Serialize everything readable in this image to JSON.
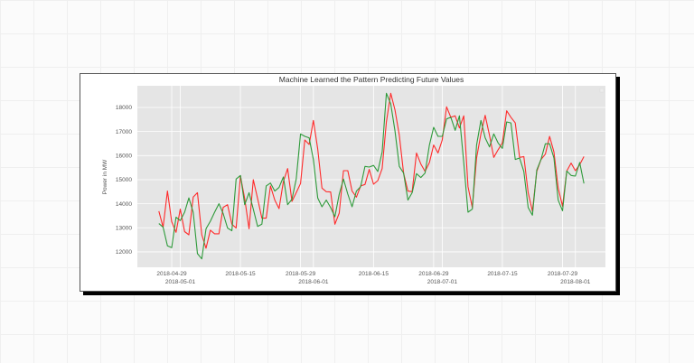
{
  "chart_data": {
    "type": "line",
    "title": "Machine Learned the Pattern Predicting Future Values",
    "xlabel": "",
    "ylabel": "Power in MW",
    "xlim": [
      "2018-04-21",
      "2018-08-08"
    ],
    "ylim": [
      11360,
      18900
    ],
    "grid": true,
    "legend": "top-right (empty box)",
    "y_ticks": [
      12000,
      13000,
      14000,
      15000,
      16000,
      17000,
      18000
    ],
    "x_ticks": [
      "2018-04-29",
      "2018-05-01",
      "2018-05-15",
      "2018-05-29",
      "2018-06-01",
      "2018-06-15",
      "2018-06-29",
      "2018-07-01",
      "2018-07-15",
      "2018-07-29",
      "2018-08-01"
    ],
    "x": [
      "2018-04-26",
      "2018-04-27",
      "2018-04-28",
      "2018-04-29",
      "2018-04-30",
      "2018-05-01",
      "2018-05-02",
      "2018-05-03",
      "2018-05-04",
      "2018-05-05",
      "2018-05-06",
      "2018-05-07",
      "2018-05-08",
      "2018-05-09",
      "2018-05-10",
      "2018-05-11",
      "2018-05-12",
      "2018-05-13",
      "2018-05-14",
      "2018-05-15",
      "2018-05-16",
      "2018-05-17",
      "2018-05-18",
      "2018-05-19",
      "2018-05-20",
      "2018-05-21",
      "2018-05-22",
      "2018-05-23",
      "2018-05-24",
      "2018-05-25",
      "2018-05-26",
      "2018-05-27",
      "2018-05-28",
      "2018-05-29",
      "2018-05-30",
      "2018-05-31",
      "2018-06-01",
      "2018-06-02",
      "2018-06-03",
      "2018-06-04",
      "2018-06-05",
      "2018-06-06",
      "2018-06-07",
      "2018-06-08",
      "2018-06-09",
      "2018-06-10",
      "2018-06-11",
      "2018-06-12",
      "2018-06-13",
      "2018-06-14",
      "2018-06-15",
      "2018-06-16",
      "2018-06-17",
      "2018-06-18",
      "2018-06-19",
      "2018-06-20",
      "2018-06-21",
      "2018-06-22",
      "2018-06-23",
      "2018-06-24",
      "2018-06-25",
      "2018-06-26",
      "2018-06-27",
      "2018-06-28",
      "2018-06-29",
      "2018-06-30",
      "2018-07-01",
      "2018-07-02",
      "2018-07-03",
      "2018-07-04",
      "2018-07-05",
      "2018-07-06",
      "2018-07-07",
      "2018-07-08",
      "2018-07-09",
      "2018-07-10",
      "2018-07-11",
      "2018-07-12",
      "2018-07-13",
      "2018-07-14",
      "2018-07-15",
      "2018-07-16",
      "2018-07-17",
      "2018-07-18",
      "2018-07-19",
      "2018-07-20",
      "2018-07-21",
      "2018-07-22",
      "2018-07-23",
      "2018-07-24",
      "2018-07-25",
      "2018-07-26",
      "2018-07-27",
      "2018-07-28",
      "2018-07-29",
      "2018-07-30",
      "2018-07-31",
      "2018-08-01",
      "2018-08-02",
      "2018-08-03"
    ],
    "series": [
      {
        "color": "#ff2a2a",
        "values": [
          13690,
          13025,
          14525,
          13250,
          12810,
          13775,
          12840,
          12710,
          14275,
          14460,
          12710,
          12150,
          12900,
          12750,
          12750,
          13850,
          13960,
          13150,
          12990,
          15150,
          14210,
          12960,
          15000,
          14210,
          13400,
          13400,
          14740,
          14150,
          13800,
          14925,
          15460,
          14100,
          14460,
          14840,
          16650,
          16460,
          17460,
          16275,
          14650,
          14500,
          14490,
          13150,
          13610,
          15375,
          15375,
          14525,
          14275,
          14740,
          14800,
          15425,
          14810,
          14960,
          15460,
          17400,
          18590,
          17900,
          16840,
          15275,
          14525,
          14500,
          16110,
          15650,
          15340,
          15710,
          16440,
          16110,
          16650,
          18025,
          17590,
          17650,
          17150,
          17650,
          14710,
          13840,
          15900,
          16900,
          17675,
          16840,
          15925,
          16240,
          16525,
          17860,
          17590,
          17360,
          15925,
          15960,
          14460,
          13690,
          15340,
          15840,
          16060,
          16800,
          16150,
          14650,
          13900,
          15360,
          15690,
          15375,
          15620,
          15960
        ]
      },
      {
        "color": "#2e9a3a",
        "values": [
          13175,
          13025,
          12250,
          12175,
          13440,
          13300,
          13650,
          14240,
          13650,
          11925,
          11710,
          12960,
          13275,
          13650,
          14000,
          13590,
          12990,
          12880,
          15025,
          15175,
          13960,
          14460,
          13775,
          13060,
          13150,
          14740,
          14860,
          14525,
          14675,
          15110,
          13960,
          14190,
          15025,
          16900,
          16800,
          16740,
          15840,
          14240,
          13875,
          14150,
          13840,
          13460,
          14400,
          15025,
          14400,
          13875,
          14525,
          14710,
          15550,
          15525,
          15590,
          15340,
          16150,
          18590,
          18150,
          17025,
          15550,
          15275,
          14150,
          14460,
          15250,
          15090,
          15275,
          16440,
          17175,
          16800,
          16800,
          17525,
          17590,
          17050,
          17650,
          15710,
          13650,
          13775,
          16440,
          17460,
          16740,
          16360,
          16900,
          16525,
          16300,
          17400,
          17360,
          15840,
          15900,
          15340,
          13840,
          13525,
          15400,
          15840,
          16490,
          16490,
          15900,
          14150,
          13710,
          15360,
          15175,
          15150,
          15710,
          14840
        ]
      }
    ]
  }
}
